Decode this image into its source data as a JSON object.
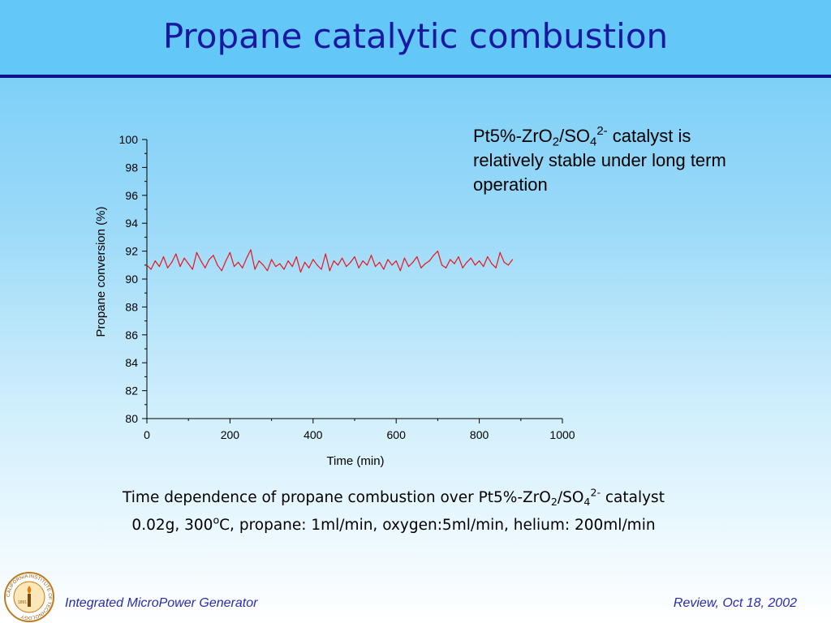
{
  "slide": {
    "title": "Propane catalytic combustion"
  },
  "note": {
    "part1": "Pt5%-ZrO",
    "sub1": "2",
    "part2": "/SO",
    "sub2": "4",
    "sup1": "2-",
    "part3": " catalyst is relatively stable under long term operation"
  },
  "caption": {
    "line1_a": "Time dependence of propane combustion over Pt5%-ZrO",
    "line1_sub1": "2",
    "line1_b": "/SO",
    "line1_sub2": "4",
    "line1_sup": "2-",
    "line1_c": " catalyst",
    "line2_a": "0.02g, 300",
    "line2_sup": "o",
    "line2_b": "C, propane: 1ml/min, oxygen:5ml/min, helium: 200ml/min"
  },
  "footer": {
    "left": "Integrated MicroPower Generator",
    "right": "Review, Oct 18, 2002"
  },
  "seal": {
    "text": "CALIFORNIA INSTITUTE OF TECHNOLOGY",
    "year": "1891"
  },
  "colors": {
    "title": "#1818a0",
    "title_bar": "#63c8f7",
    "title_rule": "#10118c",
    "series": "#e8141e",
    "footer": "#2a2ab0"
  },
  "chart_data": {
    "type": "line",
    "title": "",
    "xlabel": "Time (min)",
    "ylabel": "Propane conversion (%)",
    "xlim": [
      0,
      1000
    ],
    "ylim": [
      80,
      100
    ],
    "xticks": [
      0,
      200,
      400,
      600,
      800,
      1000
    ],
    "yticks": [
      80,
      82,
      84,
      86,
      88,
      90,
      92,
      94,
      96,
      98,
      100
    ],
    "grid": false,
    "legend": "none",
    "series": [
      {
        "x": [
          0,
          10,
          20,
          30,
          40,
          50,
          60,
          70,
          80,
          90,
          100,
          110,
          120,
          130,
          140,
          150,
          160,
          170,
          180,
          190,
          200,
          210,
          220,
          230,
          240,
          250,
          260,
          270,
          280,
          290,
          300,
          310,
          320,
          330,
          340,
          350,
          360,
          370,
          380,
          390,
          400,
          410,
          420,
          430,
          440,
          450,
          460,
          470,
          480,
          490,
          500,
          510,
          520,
          530,
          540,
          550,
          560,
          570,
          580,
          590,
          600,
          610,
          620,
          630,
          640,
          650,
          660,
          670,
          680,
          690,
          700,
          710,
          720,
          730,
          740,
          750,
          760,
          770,
          780,
          790,
          800,
          810,
          820,
          830,
          840,
          850,
          860,
          870,
          880
        ],
        "y": [
          91.0,
          90.7,
          91.3,
          90.9,
          91.6,
          90.8,
          91.2,
          91.8,
          90.9,
          91.5,
          91.1,
          90.7,
          91.9,
          91.3,
          90.8,
          91.4,
          91.7,
          91.0,
          90.6,
          91.3,
          91.9,
          90.9,
          91.2,
          90.8,
          91.5,
          92.1,
          90.7,
          91.3,
          91.0,
          90.6,
          91.4,
          90.9,
          91.1,
          90.7,
          91.3,
          90.9,
          91.6,
          90.5,
          91.2,
          90.8,
          91.4,
          91.0,
          90.7,
          91.8,
          90.6,
          91.3,
          91.0,
          91.5,
          90.9,
          91.2,
          91.6,
          90.8,
          91.3,
          91.0,
          91.7,
          90.9,
          91.2,
          90.7,
          91.4,
          91.0,
          91.3,
          90.6,
          91.5,
          90.9,
          91.2,
          91.6,
          90.8,
          91.1,
          91.3,
          91.7,
          92.0,
          91.0,
          90.8,
          91.4,
          91.1,
          91.6,
          90.8,
          91.2,
          91.5,
          91.0,
          91.3,
          90.9,
          91.6,
          91.1,
          90.8,
          91.9,
          91.2,
          91.0,
          91.4
        ]
      }
    ]
  }
}
